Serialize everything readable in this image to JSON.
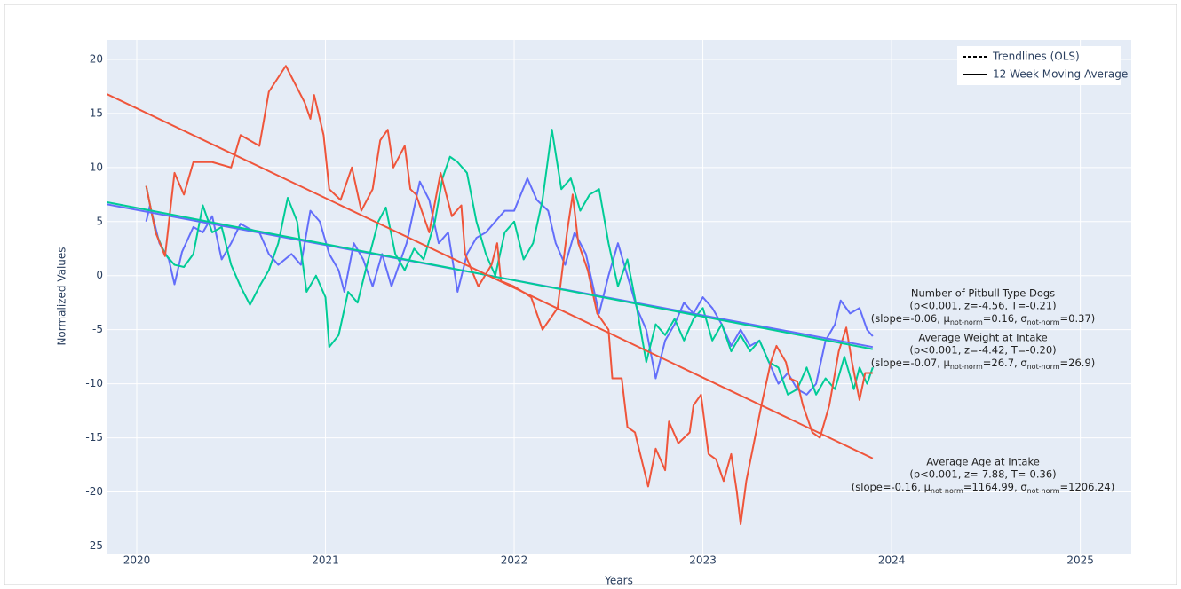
{
  "chart_data": {
    "type": "line",
    "x_label": "Years",
    "y_label": "Normalized Values",
    "xlim": [
      2019.84,
      2025.27
    ],
    "ylim": [
      -25.7,
      21.8
    ],
    "xticks": [
      2020,
      2021,
      2022,
      2023,
      2024,
      2025
    ],
    "yticks": [
      -25,
      -20,
      -15,
      -10,
      -5,
      0,
      5,
      10,
      15,
      20
    ],
    "grid": true,
    "plot_background": "#e5ecf6",
    "legend": {
      "position": "upper right",
      "entries": [
        {
          "label": "Trendlines (OLS)",
          "dash": "dashed"
        },
        {
          "label": "12 Week Moving Average",
          "dash": "solid"
        }
      ]
    },
    "series": [
      {
        "name": "Number of Pitbull-Type Dogs",
        "color": "#636efa",
        "x": [
          2020.05,
          2020.07,
          2020.12,
          2020.17,
          2020.2,
          2020.24,
          2020.3,
          2020.35,
          2020.4,
          2020.45,
          2020.5,
          2020.55,
          2020.6,
          2020.65,
          2020.7,
          2020.75,
          2020.82,
          2020.87,
          2020.92,
          2020.97,
          2021.02,
          2021.07,
          2021.1,
          2021.15,
          2021.2,
          2021.25,
          2021.3,
          2021.35,
          2021.43,
          2021.5,
          2021.55,
          2021.6,
          2021.65,
          2021.7,
          2021.75,
          2021.8,
          2021.85,
          2021.9,
          2021.95,
          2022.0,
          2022.07,
          2022.12,
          2022.18,
          2022.22,
          2022.27,
          2022.32,
          2022.38,
          2022.45,
          2022.5,
          2022.55,
          2022.6,
          2022.65,
          2022.7,
          2022.75,
          2022.8,
          2022.85,
          2022.9,
          2022.95,
          2023.0,
          2023.05,
          2023.1,
          2023.15,
          2023.2,
          2023.25,
          2023.3,
          2023.35,
          2023.4,
          2023.45,
          2023.5,
          2023.55,
          2023.6,
          2023.65,
          2023.7,
          2023.73,
          2023.78,
          2023.83,
          2023.87,
          2023.9
        ],
        "values": [
          5,
          6.5,
          3,
          1.5,
          -0.8,
          2.2,
          4.5,
          4,
          5.5,
          1.5,
          3,
          4.8,
          4.3,
          4,
          2,
          1,
          2,
          1,
          6,
          5,
          2,
          0.5,
          -1.5,
          3,
          1.5,
          -1,
          2,
          -1,
          3,
          8.7,
          7,
          3,
          4,
          -1.5,
          2,
          3.5,
          4,
          5,
          6,
          6,
          9,
          7,
          6,
          3,
          1,
          4,
          2,
          -3.5,
          0,
          3,
          0,
          -3,
          -5,
          -9.5,
          -6,
          -4.5,
          -2.5,
          -3.5,
          -2,
          -3,
          -4.5,
          -6.5,
          -5,
          -6.5,
          -6,
          -8,
          -10,
          -9,
          -10.5,
          -11,
          -10,
          -6,
          -4.5,
          -2.3,
          -3.5,
          -3,
          -5,
          -5.6
        ]
      },
      {
        "name": "Average Weight at Intake",
        "color": "#00cc96",
        "x": [
          2020.05,
          2020.1,
          2020.15,
          2020.2,
          2020.25,
          2020.3,
          2020.35,
          2020.4,
          2020.45,
          2020.5,
          2020.55,
          2020.6,
          2020.65,
          2020.7,
          2020.75,
          2020.8,
          2020.85,
          2020.9,
          2020.95,
          2021.0,
          2021.02,
          2021.07,
          2021.12,
          2021.17,
          2021.22,
          2021.28,
          2021.32,
          2021.37,
          2021.42,
          2021.47,
          2021.52,
          2021.58,
          2021.62,
          2021.66,
          2021.7,
          2021.75,
          2021.8,
          2021.85,
          2021.9,
          2021.95,
          2022.0,
          2022.05,
          2022.1,
          2022.15,
          2022.2,
          2022.25,
          2022.3,
          2022.35,
          2022.4,
          2022.45,
          2022.5,
          2022.55,
          2022.6,
          2022.65,
          2022.7,
          2022.75,
          2022.8,
          2022.85,
          2022.9,
          2022.95,
          2023.0,
          2023.05,
          2023.1,
          2023.15,
          2023.2,
          2023.25,
          2023.3,
          2023.35,
          2023.4,
          2023.45,
          2023.5,
          2023.55,
          2023.6,
          2023.65,
          2023.7,
          2023.75,
          2023.8,
          2023.83,
          2023.87,
          2023.9
        ],
        "values": [
          8.3,
          4,
          2,
          1,
          0.8,
          2,
          6.5,
          4,
          4.5,
          1,
          -1,
          -2.7,
          -1,
          0.5,
          3,
          7.2,
          5,
          -1.5,
          0,
          -2,
          -6.6,
          -5.5,
          -1.5,
          -2.5,
          1,
          5,
          6.3,
          2,
          0.5,
          2.5,
          1.5,
          5,
          9,
          11,
          10.5,
          9.5,
          5,
          2,
          0,
          4,
          5,
          1.5,
          3,
          7,
          13.5,
          8,
          9,
          6,
          7.5,
          8,
          3,
          -1,
          1.5,
          -3,
          -8,
          -4.5,
          -5.5,
          -4,
          -6,
          -4,
          -3,
          -6,
          -4.5,
          -7,
          -5.5,
          -7,
          -6,
          -8,
          -8.5,
          -11,
          -10.5,
          -8.5,
          -11,
          -9.5,
          -10.5,
          -7.5,
          -10.5,
          -8.5,
          -10,
          -8.5
        ]
      },
      {
        "name": "Average Age at Intake",
        "color": "#ef553b",
        "x": [
          2020.05,
          2020.1,
          2020.15,
          2020.2,
          2020.25,
          2020.3,
          2020.4,
          2020.5,
          2020.55,
          2020.65,
          2020.7,
          2020.79,
          2020.89,
          2020.92,
          2020.94,
          2020.99,
          2021.02,
          2021.08,
          2021.14,
          2021.19,
          2021.25,
          2021.29,
          2021.33,
          2021.36,
          2021.42,
          2021.45,
          2021.48,
          2021.55,
          2021.61,
          2021.67,
          2021.72,
          2021.74,
          2021.81,
          2021.88,
          2021.91,
          2021.93,
          2022.0,
          2022.09,
          2022.15,
          2022.23,
          2022.28,
          2022.31,
          2022.34,
          2022.39,
          2022.44,
          2022.5,
          2022.52,
          2022.57,
          2022.6,
          2022.64,
          2022.71,
          2022.75,
          2022.8,
          2022.82,
          2022.87,
          2022.93,
          2022.95,
          2022.99,
          2023.03,
          2023.07,
          2023.11,
          2023.15,
          2023.18,
          2023.2,
          2023.23,
          2023.27,
          2023.31,
          2023.36,
          2023.39,
          2023.44,
          2023.46,
          2023.5,
          2023.53,
          2023.58,
          2023.62,
          2023.67,
          2023.72,
          2023.76,
          2023.79,
          2023.83,
          2023.86,
          2023.9
        ],
        "values": [
          8.3,
          4,
          1.8,
          9.5,
          7.5,
          10.5,
          10.5,
          10,
          13,
          12,
          17,
          19.4,
          16,
          14.5,
          16.7,
          13,
          8,
          7,
          10,
          6,
          8,
          12.5,
          13.5,
          10,
          12,
          8,
          7.5,
          4,
          9.5,
          5.5,
          6.5,
          2,
          -1,
          1,
          3,
          -0.5,
          -1,
          -2,
          -5,
          -3,
          4,
          7.5,
          3,
          0.5,
          -3.5,
          -5,
          -9.5,
          -9.5,
          -14,
          -14.5,
          -19.5,
          -16,
          -18,
          -13.5,
          -15.5,
          -14.5,
          -12,
          -11,
          -16.5,
          -17,
          -19,
          -16.5,
          -20,
          -23,
          -19,
          -15.5,
          -12,
          -8,
          -6.5,
          -8,
          -9.5,
          -9.8,
          -12,
          -14.5,
          -15,
          -12,
          -7,
          -4.8,
          -8,
          -11.5,
          -9,
          -9
        ]
      }
    ],
    "trendlines": [
      {
        "color": "#636efa",
        "x": [
          2019.84,
          2023.9
        ],
        "values": [
          6.6,
          -6.6
        ]
      },
      {
        "color": "#00cc96",
        "x": [
          2019.84,
          2023.9
        ],
        "values": [
          6.8,
          -6.8
        ]
      },
      {
        "color": "#ef553b",
        "x": [
          2019.84,
          2023.9
        ],
        "values": [
          16.8,
          -16.9
        ]
      }
    ],
    "annotations": [
      {
        "lines": [
          "Number of Pitbull-Type Dogs",
          "(p<0.001, z=-4.56, T=-0.21)"
        ],
        "stats": [
          "(slope=-0.06, μ",
          "not-norm",
          "=0.16, σ",
          "not-norm",
          "=0.37)"
        ]
      },
      {
        "lines": [
          "Average Weight at Intake",
          "(p<0.001, z=-4.42, T=-0.20)"
        ],
        "stats": [
          "(slope=-0.07, μ",
          "not-norm",
          "=26.7, σ",
          "not-norm",
          "=26.9)"
        ]
      },
      {
        "lines": [
          "Average Age at Intake",
          "(p<0.001, z=-7.88, T=-0.36)"
        ],
        "stats": [
          "(slope=-0.16, μ",
          "not-norm",
          "=1164.99, σ",
          "not-norm",
          "=1206.24)"
        ]
      }
    ]
  }
}
